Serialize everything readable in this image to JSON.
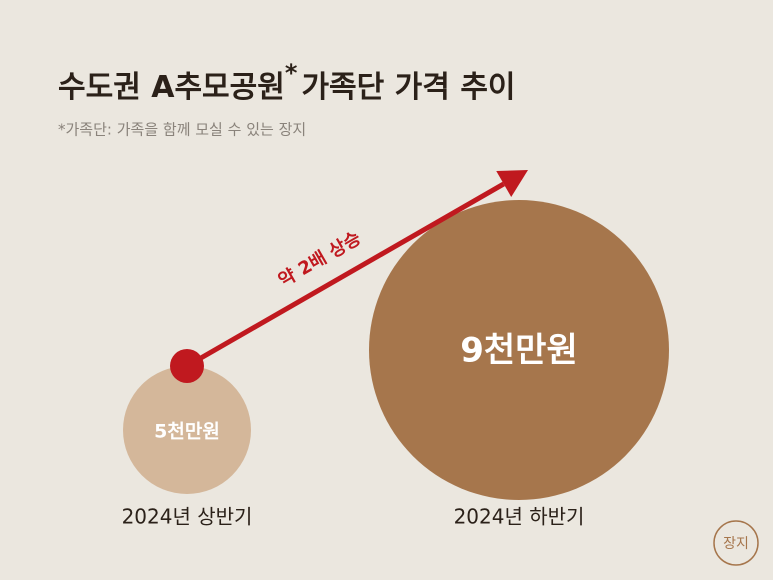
{
  "chart_data": {
    "type": "bubble",
    "title": "수도권 A추모공원",
    "title_mark": "*",
    "title_suffix": "가족단 가격 추이",
    "subtitle": "*가족단: 가족을 함께 모실 수 있는 장지",
    "annotation": "약 2배 상승",
    "logo": "장지",
    "categories": [
      "2024년 상반기",
      "2024년 하반기"
    ],
    "values": [
      5,
      9
    ],
    "value_labels": [
      "5천만원",
      "9천만원"
    ],
    "colors": [
      "#d4b79a",
      "#a6764c"
    ],
    "arrow_color": "#c0191f"
  }
}
